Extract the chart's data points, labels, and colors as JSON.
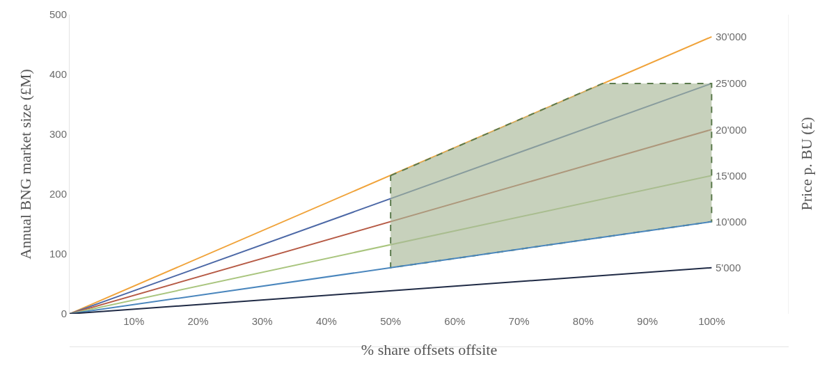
{
  "chart_data": {
    "type": "line",
    "xlabel": "% share offsets offsite",
    "ylabel": "Annual BNG market size (£M)",
    "y2label": "Price p. BU (£)",
    "xlim": [
      0,
      112
    ],
    "ylim": [
      0,
      500
    ],
    "xticks": [
      {
        "value": 10,
        "label": "10%"
      },
      {
        "value": 20,
        "label": "20%"
      },
      {
        "value": 30,
        "label": "30%"
      },
      {
        "value": 40,
        "label": "40%"
      },
      {
        "value": 50,
        "label": "50%"
      },
      {
        "value": 60,
        "label": "60%"
      },
      {
        "value": 70,
        "label": "70%"
      },
      {
        "value": 80,
        "label": "80%"
      },
      {
        "value": 90,
        "label": "90%"
      },
      {
        "value": 100,
        "label": "100%"
      }
    ],
    "yticks": [
      0,
      100,
      200,
      300,
      400,
      500
    ],
    "legend": false,
    "marker": "none",
    "x": [
      0,
      100
    ],
    "series": [
      {
        "name": "30'000",
        "color": "#f0a33a",
        "values": [
          0,
          463
        ]
      },
      {
        "name": "25'000",
        "color": "#4c68a6",
        "values": [
          0,
          385
        ]
      },
      {
        "name": "20'000",
        "color": "#b65a45",
        "values": [
          0,
          308
        ]
      },
      {
        "name": "15'000",
        "color": "#a9c57e",
        "values": [
          0,
          231
        ]
      },
      {
        "name": "10'000",
        "color": "#4a86bd",
        "x": [
          0,
          50,
          83,
          100
        ],
        "values": [
          0,
          77,
          128,
          154
        ],
        "lower": [
          null,
          77,
          128,
          154
        ],
        "upper": [
          null,
          231,
          385,
          385
        ]
      },
      {
        "name": "5'000",
        "color": "#1f2a45",
        "values": [
          0,
          77
        ]
      }
    ]
  }
}
